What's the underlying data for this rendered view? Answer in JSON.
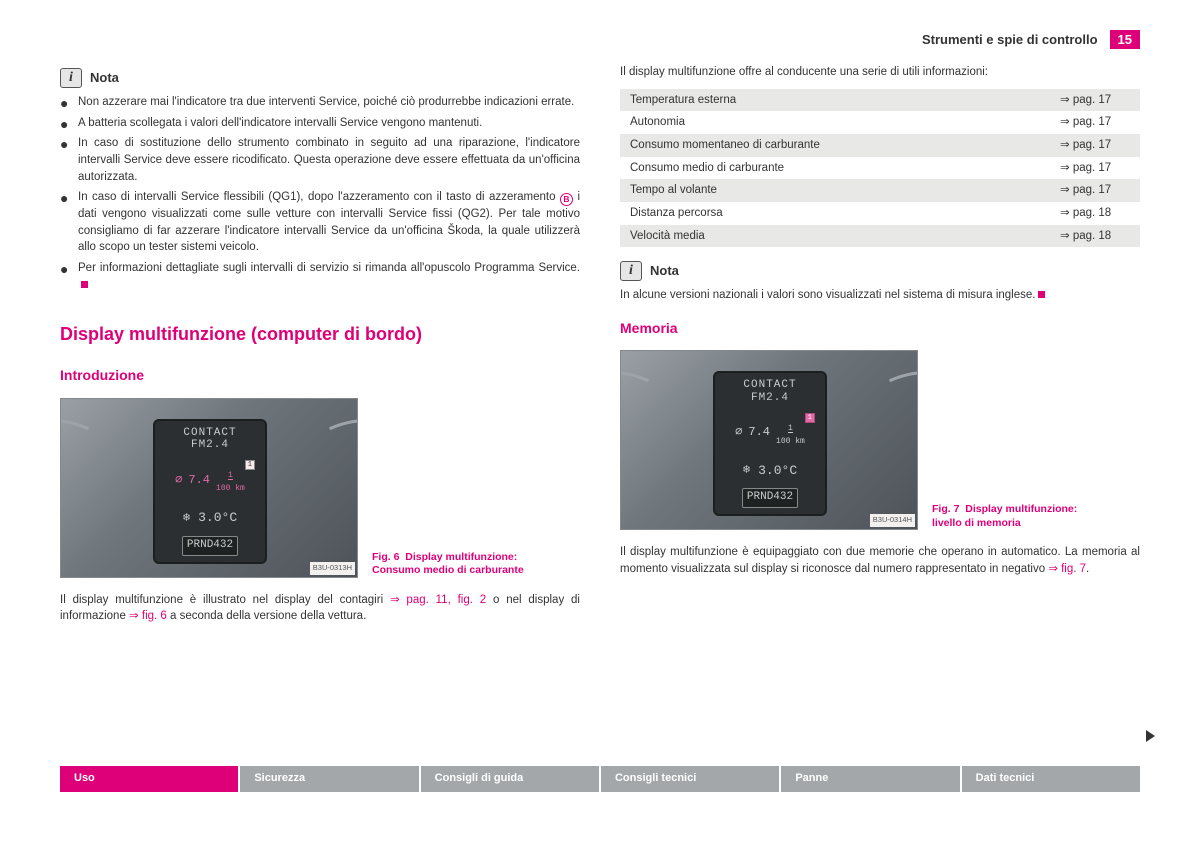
{
  "header": {
    "section_title": "Strumenti e spie di controllo",
    "page_number": "15"
  },
  "left": {
    "note_label": "Nota",
    "bullets": [
      "Non azzerare mai l'indicatore tra due interventi Service, poiché ciò produrrebbe indicazioni errate.",
      "A batteria scollegata i valori dell'indicatore intervalli Service vengono mantenuti.",
      "In caso di sostituzione dello strumento combinato in seguito ad una riparazione, l'indicatore intervalli Service deve essere ricodificato. Questa operazione deve essere effettuata da un'officina autorizzata.",
      "",
      "Per informazioni dettagliate sugli intervalli di servizio si rimanda all'opuscolo Programma Service."
    ],
    "bullet4_pre": "In caso di intervalli Service flessibili (QG1), dopo l'azzeramento con il tasto di azzeramento ",
    "bullet4_badge": "B",
    "bullet4_post": " i dati vengono visualizzati come sulle vetture con intervalli Service fissi (QG2). Per tale motivo consigliamo di far azzerare l'indicatore intervalli Service da un'officina Škoda, la quale utilizzerà allo scopo un tester sistemi veicolo.",
    "h1": "Display multifunzione (computer di bordo)",
    "h2": "Introduzione",
    "fig_code": "B3U-0313H",
    "caption_label": "Fig. 6",
    "caption_text": "Display multifunzione: Consumo medio di carburante",
    "body_pre": "Il display multifunzione è illustrato nel display del contagiri ",
    "body_link1": "⇒ pag. 11, fig. 2",
    "body_mid": " o nel display di informazione ",
    "body_link2": "⇒ fig. 6",
    "body_post": " a seconda della versione della vettura."
  },
  "right": {
    "intro": "Il display multifunzione offre al conducente una serie di utili informazioni:",
    "table": [
      {
        "label": "Temperatura esterna",
        "ref": "⇒ pag. 17"
      },
      {
        "label": "Autonomia",
        "ref": "⇒ pag. 17"
      },
      {
        "label": "Consumo momentaneo di carburante",
        "ref": "⇒ pag. 17"
      },
      {
        "label": "Consumo medio di carburante",
        "ref": "⇒ pag. 17"
      },
      {
        "label": "Tempo al volante",
        "ref": "⇒ pag. 17"
      },
      {
        "label": "Distanza percorsa",
        "ref": "⇒ pag. 18"
      },
      {
        "label": "Velocità media",
        "ref": "⇒ pag. 18"
      }
    ],
    "note_label": "Nota",
    "note_text": "In alcune versioni nazionali i valori sono visualizzati nel sistema di misura inglese.",
    "h2": "Memoria",
    "fig_code": "B3U-0314H",
    "caption_label": "Fig. 7",
    "caption_text": "Display multifunzione: livello di memoria",
    "body": "Il display multifunzione è equipaggiato con due memorie che operano in automatico. La memoria al momento visualizzata sul display si riconosce dal numero rappresentato in negativo ",
    "body_link": "⇒ fig. 7",
    "body_post": "."
  },
  "dashboard": {
    "line1": "CONTACT",
    "line2": "FM2.4",
    "consumption_sym": "⌀",
    "consumption_val": "7.4",
    "unit_top": "1",
    "unit_bot": "100 km",
    "tag": "1",
    "temp": "3.0°C",
    "gear": "PRND432"
  },
  "footer": {
    "tabs": [
      "Uso",
      "Sicurezza",
      "Consigli di guida",
      "Consigli tecnici",
      "Panne",
      "Dati tecnici"
    ]
  },
  "colors": {
    "accent": "#dd0079",
    "grey_tab": "#a3a7aa",
    "row_grey": "#e8e8e6",
    "text": "#333333"
  }
}
